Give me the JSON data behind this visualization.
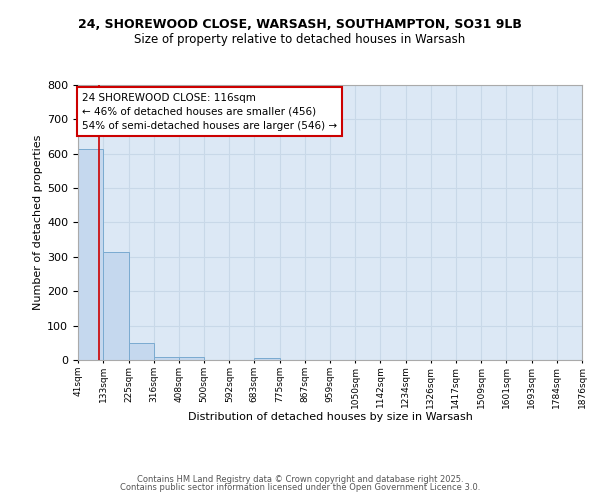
{
  "title_line1": "24, SHOREWOOD CLOSE, WARSASH, SOUTHAMPTON, SO31 9LB",
  "title_line2": "Size of property relative to detached houses in Warsash",
  "xlabel": "Distribution of detached houses by size in Warsash",
  "ylabel": "Number of detached properties",
  "bin_edges": [
    41,
    133,
    225,
    316,
    408,
    500,
    592,
    683,
    775,
    867,
    959,
    1050,
    1142,
    1234,
    1326,
    1417,
    1509,
    1601,
    1693,
    1784,
    1876
  ],
  "bar_heights": [
    615,
    315,
    50,
    8,
    10,
    0,
    0,
    5,
    0,
    0,
    0,
    0,
    0,
    0,
    0,
    0,
    0,
    0,
    0,
    0
  ],
  "bar_color": "#c5d8ee",
  "bar_edge_color": "#7aaad0",
  "grid_color": "#c8d8e8",
  "background_color": "#dce8f5",
  "property_size": 116,
  "vline_color": "#cc0000",
  "annotation_text": "24 SHOREWOOD CLOSE: 116sqm\n← 46% of detached houses are smaller (456)\n54% of semi-detached houses are larger (546) →",
  "annotation_box_color": "#cc0000",
  "ylim": [
    0,
    800
  ],
  "yticks": [
    0,
    100,
    200,
    300,
    400,
    500,
    600,
    700,
    800
  ],
  "footer_text1": "Contains HM Land Registry data © Crown copyright and database right 2025.",
  "footer_text2": "Contains public sector information licensed under the Open Government Licence 3.0."
}
